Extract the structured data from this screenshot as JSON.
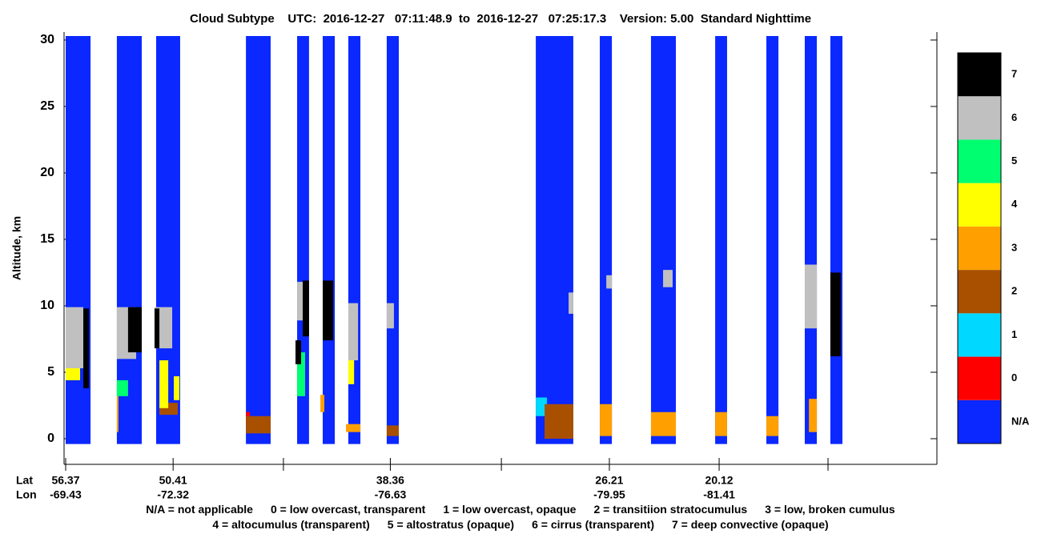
{
  "chart_data": {
    "type": "curtain",
    "title": "Cloud Subtype    UTC:  2016-12-27   07:11:48.9  to  2016-12-27   07:25:17.3    Version: 5.00  Standard Nighttime",
    "y_label": "Altitude, km",
    "lat_label": "Lat",
    "lon_label": "Lon",
    "xlim": [
      56.37,
      8.04
    ],
    "xticks": [
      56.37,
      50.41,
      38.36,
      26.21,
      20.12
    ],
    "lon": [
      -69.43,
      -72.32,
      -76.63,
      -79.95,
      -81.41
    ],
    "xticks_unlabeled": [
      44.29,
      32.2,
      14.08
    ],
    "ylim": [
      -1.93,
      30.3
    ],
    "yticks": [
      0,
      5,
      10,
      15,
      20,
      25,
      30
    ],
    "series": [
      {
        "name": "N/A",
        "color": "#0a28ff",
        "values": [
          [
            56.37,
            54.99,
            -0.4,
            30.3
          ],
          [
            53.53,
            52.15,
            -0.4,
            30.3
          ],
          [
            51.35,
            50.02,
            -0.4,
            30.3
          ],
          [
            46.37,
            45.0,
            -0.4,
            30.3
          ],
          [
            43.53,
            42.87,
            -0.4,
            30.3
          ],
          [
            42.11,
            41.44,
            -0.4,
            30.3
          ],
          [
            40.69,
            40.02,
            -0.4,
            30.3
          ],
          [
            38.56,
            37.89,
            -0.4,
            30.3
          ],
          [
            30.29,
            28.21,
            -0.4,
            30.3
          ],
          [
            26.74,
            26.07,
            -0.4,
            30.3
          ],
          [
            23.9,
            22.52,
            -0.4,
            30.3
          ],
          [
            20.34,
            19.68,
            -0.4,
            30.3
          ],
          [
            17.5,
            16.83,
            -0.4,
            30.3
          ],
          [
            15.37,
            14.7,
            -0.4,
            30.3
          ],
          [
            13.95,
            13.28,
            -0.4,
            30.3
          ]
        ]
      },
      {
        "name": "0",
        "color": "#ff0000",
        "values": [
          [
            46.37,
            46.15,
            1.1,
            2.0
          ],
          [
            29.8,
            29.54,
            0.0,
            1.7
          ]
        ]
      },
      {
        "name": "1",
        "color": "#00d8ff",
        "values": [
          [
            30.29,
            29.67,
            1.7,
            3.1
          ],
          [
            46.24,
            45.88,
            0.5,
            1.6
          ]
        ]
      },
      {
        "name": "2",
        "color": "#a85000",
        "values": [
          [
            51.17,
            50.15,
            1.8,
            2.7
          ],
          [
            46.37,
            45.0,
            0.4,
            1.7
          ],
          [
            38.56,
            37.89,
            0.2,
            1.0
          ],
          [
            29.8,
            28.21,
            0.0,
            2.6
          ]
        ]
      },
      {
        "name": "3",
        "color": "#ffa000",
        "values": [
          [
            26.74,
            26.07,
            0.2,
            2.6
          ],
          [
            23.9,
            22.52,
            0.2,
            2.0
          ],
          [
            20.34,
            19.68,
            0.2,
            2.0
          ],
          [
            17.5,
            16.83,
            0.2,
            1.7
          ],
          [
            15.14,
            14.7,
            0.5,
            3.0
          ],
          [
            42.24,
            42.02,
            2.0,
            3.3
          ],
          [
            40.82,
            40.02,
            0.5,
            1.1
          ],
          [
            53.53,
            53.44,
            0.5,
            4.1
          ]
        ]
      },
      {
        "name": "4",
        "color": "#ffff00",
        "values": [
          [
            56.37,
            55.57,
            4.4,
            5.9
          ],
          [
            51.17,
            50.68,
            2.3,
            5.9
          ],
          [
            40.69,
            40.37,
            4.1,
            6.5
          ],
          [
            50.37,
            50.06,
            2.9,
            4.7
          ]
        ]
      },
      {
        "name": "5",
        "color": "#00ff70",
        "values": [
          [
            53.53,
            52.91,
            3.2,
            4.4
          ],
          [
            43.53,
            43.09,
            3.2,
            6.5
          ],
          [
            55.3,
            55.08,
            4.7,
            5.9
          ]
        ]
      },
      {
        "name": "6",
        "color": "#c0c0c0",
        "values": [
          [
            56.37,
            55.39,
            5.3,
            9.9
          ],
          [
            53.53,
            52.46,
            6.0,
            9.9
          ],
          [
            51.44,
            50.46,
            6.8,
            9.9
          ],
          [
            43.53,
            43.0,
            8.9,
            11.8
          ],
          [
            40.69,
            40.15,
            5.9,
            10.2
          ],
          [
            38.56,
            38.16,
            8.3,
            10.2
          ],
          [
            28.47,
            28.21,
            9.4,
            11.0
          ],
          [
            26.38,
            26.07,
            11.3,
            12.3
          ],
          [
            23.23,
            22.7,
            11.4,
            12.7
          ],
          [
            15.37,
            14.7,
            8.3,
            13.1
          ]
        ]
      },
      {
        "name": "7",
        "color": "#000000",
        "values": [
          [
            55.39,
            55.08,
            3.8,
            9.8
          ],
          [
            52.91,
            52.15,
            6.5,
            9.9
          ],
          [
            51.44,
            51.17,
            6.8,
            9.8
          ],
          [
            43.22,
            42.87,
            7.7,
            11.9
          ],
          [
            42.11,
            41.53,
            7.4,
            11.9
          ],
          [
            13.95,
            13.37,
            6.2,
            12.5
          ],
          [
            43.62,
            43.31,
            5.6,
            7.4
          ]
        ]
      }
    ],
    "legend_notes": [
      "N/A = not applicable",
      "0 = low overcast, transparent",
      "1 = low overcast, opaque",
      "2 = transitiion stratocumulus",
      "3 = low, broken cumulus",
      "4 = altocumulus (transparent)",
      "5 = altostratus (opaque)",
      "6 = cirrus (transparent)",
      "7 = deep convective (opaque)"
    ]
  }
}
